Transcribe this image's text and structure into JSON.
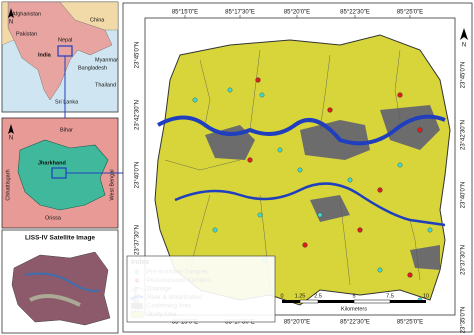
{
  "main_map": {
    "lon_labels_top": [
      "85°15'0\"E",
      "85°17'30\"E",
      "85°20'0\"E",
      "85°22'30\"E",
      "85°25'0\"E"
    ],
    "lon_labels_bottom": [
      "85°15'0\"E",
      "85°17'30\"E",
      "85°20'0\"E",
      "85°22'30\"E",
      "85°25'0\"E"
    ],
    "lat_labels_left": [
      "23°45'0\"N",
      "23°42'30\"N",
      "23°40'0\"N",
      "23°37'30\"N",
      "23°35'0\"N"
    ],
    "lat_labels_right": [
      "23°45'0\"N",
      "23°42'30\"N",
      "23°40'0\"N",
      "23°37'30\"N",
      "23°35'0\"N"
    ],
    "north": "N"
  },
  "legend": {
    "title": "Index",
    "items": [
      "Pre-monsoon Samples",
      "Post-monsoon Samples",
      "Drainage",
      "River & Waterbodies",
      "Coalmining Area",
      "Study Area"
    ]
  },
  "scale": {
    "ticks": [
      "0",
      "1.25",
      "2.5",
      "5",
      "7.5",
      "10"
    ],
    "unit": "Kilometers"
  },
  "inset_india": {
    "labels": [
      "Afghanistan",
      "Pakistan",
      "China",
      "India",
      "Nepal",
      "Myanmar",
      "Bangladesh",
      "Thailand",
      "Sri Lanka"
    ],
    "north": "N"
  },
  "inset_state": {
    "labels": [
      "Bihar",
      "Jharkhand",
      "Chhattisgarh",
      "West Bengal",
      "Orissa"
    ],
    "north": "N"
  },
  "inset_satellite": {
    "title": "LISS-IV Satellite Image"
  }
}
